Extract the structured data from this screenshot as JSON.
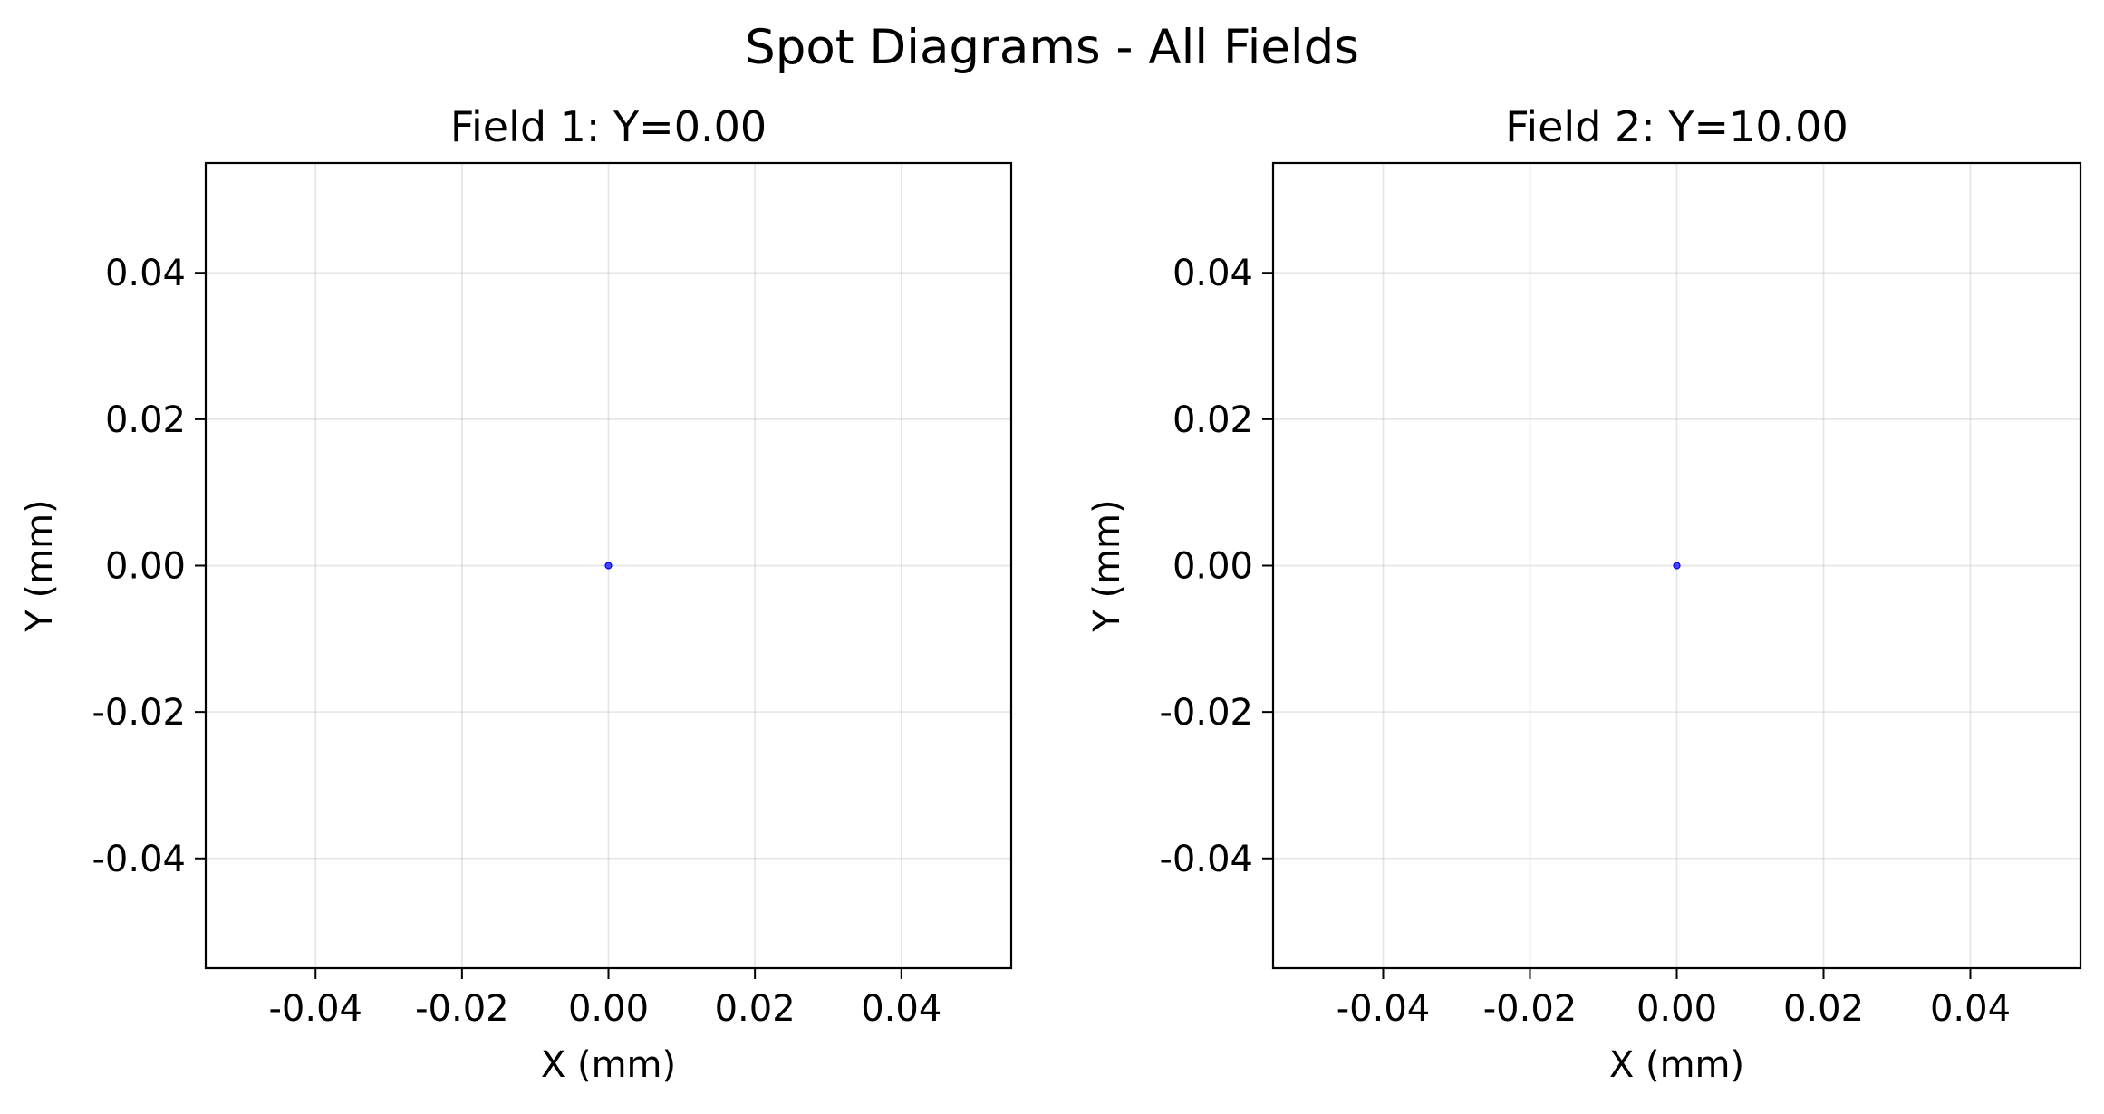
{
  "figure": {
    "title": "Spot Diagrams - All Fields"
  },
  "chart_data": [
    {
      "type": "scatter",
      "title": "Field 1: Y=0.00",
      "xlabel": "X (mm)",
      "ylabel": "Y (mm)",
      "xlim": [
        -0.055,
        0.055
      ],
      "ylim": [
        -0.055,
        0.055
      ],
      "xticks": [
        -0.04,
        -0.02,
        0.0,
        0.02,
        0.04
      ],
      "yticks": [
        -0.04,
        -0.02,
        0.0,
        0.02,
        0.04
      ],
      "xtick_labels": [
        "-0.04",
        "-0.02",
        "0.00",
        "0.02",
        "0.04"
      ],
      "ytick_labels": [
        "-0.04",
        "-0.02",
        "0.00",
        "0.02",
        "0.04"
      ],
      "grid": true,
      "series": [
        {
          "points": [
            {
              "x": 0.0,
              "y": 0.0
            }
          ],
          "color": "#0000ff"
        }
      ]
    },
    {
      "type": "scatter",
      "title": "Field 2: Y=10.00",
      "xlabel": "X (mm)",
      "ylabel": "Y (mm)",
      "xlim": [
        -0.055,
        0.055
      ],
      "ylim": [
        -0.055,
        0.055
      ],
      "xticks": [
        -0.04,
        -0.02,
        0.0,
        0.02,
        0.04
      ],
      "yticks": [
        -0.04,
        -0.02,
        0.0,
        0.02,
        0.04
      ],
      "xtick_labels": [
        "-0.04",
        "-0.02",
        "0.00",
        "0.02",
        "0.04"
      ],
      "ytick_labels": [
        "-0.04",
        "-0.02",
        "0.00",
        "0.02",
        "0.04"
      ],
      "grid": true,
      "series": [
        {
          "points": [
            {
              "x": 0.0,
              "y": 0.0
            }
          ],
          "color": "#0000ff"
        }
      ]
    }
  ]
}
